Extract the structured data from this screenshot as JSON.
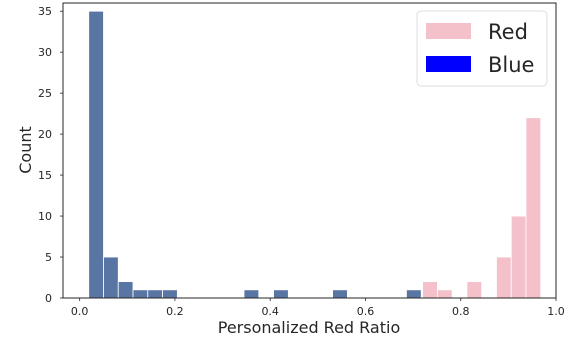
{
  "chart_data": {
    "type": "bar",
    "subtype": "histogram",
    "xlabel": "Personalized Red Ratio",
    "ylabel": "Count",
    "xlim": [
      -0.035,
      1.0
    ],
    "ylim": [
      0,
      36
    ],
    "xticks": [
      0.0,
      0.2,
      0.4,
      0.6,
      0.8,
      1.0
    ],
    "xtick_labels": [
      "0.0",
      "0.2",
      "0.4",
      "0.6",
      "0.8",
      "1.0"
    ],
    "yticks": [
      0,
      5,
      10,
      15,
      20,
      25,
      30,
      35
    ],
    "ytick_labels": [
      "0",
      "5",
      "10",
      "15",
      "20",
      "25",
      "30",
      "35"
    ],
    "grid": false,
    "legend_position": "top-right",
    "legend": [
      {
        "label": "Red",
        "color": "#f4c0c9"
      },
      {
        "label": "Blue",
        "color": "#0000ff"
      }
    ],
    "series": [
      {
        "name": "Blue",
        "color": "#5975a4",
        "bins": [
          {
            "x0": 0.019,
            "x1": 0.05,
            "count": 35
          },
          {
            "x0": 0.05,
            "x1": 0.081,
            "count": 5
          },
          {
            "x0": 0.081,
            "x1": 0.112,
            "count": 2
          },
          {
            "x0": 0.112,
            "x1": 0.143,
            "count": 1
          },
          {
            "x0": 0.143,
            "x1": 0.174,
            "count": 1
          },
          {
            "x0": 0.174,
            "x1": 0.205,
            "count": 1
          },
          {
            "x0": 0.345,
            "x1": 0.376,
            "count": 1
          },
          {
            "x0": 0.407,
            "x1": 0.438,
            "count": 1
          },
          {
            "x0": 0.531,
            "x1": 0.562,
            "count": 1
          },
          {
            "x0": 0.686,
            "x1": 0.717,
            "count": 1
          }
        ]
      },
      {
        "name": "Red",
        "color": "#f4c0c9",
        "bins": [
          {
            "x0": 0.72,
            "x1": 0.751,
            "count": 2
          },
          {
            "x0": 0.751,
            "x1": 0.782,
            "count": 1
          },
          {
            "x0": 0.813,
            "x1": 0.844,
            "count": 2
          },
          {
            "x0": 0.875,
            "x1": 0.906,
            "count": 5
          },
          {
            "x0": 0.906,
            "x1": 0.937,
            "count": 10
          },
          {
            "x0": 0.937,
            "x1": 0.968,
            "count": 22
          }
        ]
      }
    ]
  }
}
